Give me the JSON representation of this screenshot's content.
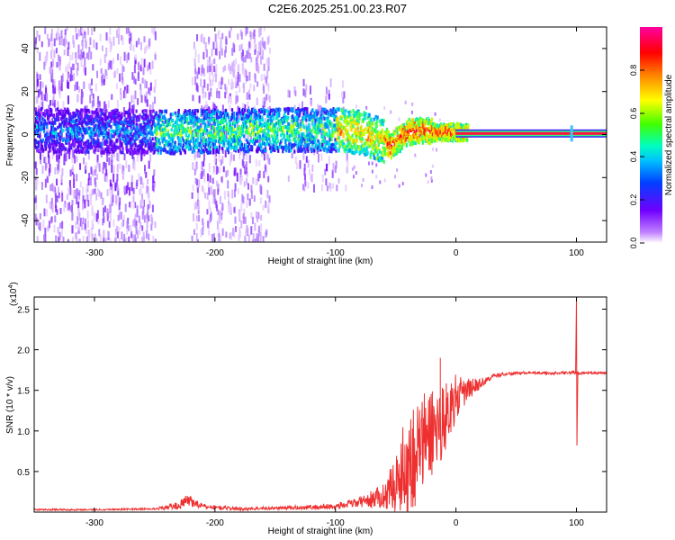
{
  "title": "C2E6.2025.251.00.23.R07",
  "colors": {
    "specgram_base": "#8000ff",
    "snr_line": "#ee3030",
    "frame": "#000000"
  },
  "chart_data": [
    {
      "type": "heatmap",
      "xlabel": "Height of straight line (km)",
      "ylabel": "Frequency (Hz)",
      "xlim": [
        -350,
        125
      ],
      "ylim": [
        -50,
        50
      ],
      "xticks": [
        -300,
        -200,
        -100,
        0,
        100
      ],
      "yticks": [
        -40,
        -20,
        0,
        20,
        40
      ],
      "grid": false,
      "colorbar": {
        "label": "Normalized spectral amplitude",
        "range": [
          0.0,
          1.0
        ],
        "ticks": [
          0.0,
          0.2,
          0.4,
          0.6,
          0.8
        ],
        "tick_labels": [
          "0.0",
          "0.2",
          "0.4",
          "0.6",
          "0.8"
        ],
        "colormap": "rainbow (white → purple → blue → cyan → green → yellow → red → magenta)"
      },
      "features": {
        "scatter_noise_x_ranges": [
          [
            -350,
            -250
          ],
          [
            -220,
            -155
          ],
          [
            -140,
            -90
          ]
        ],
        "gap_x_range": [
          -250,
          -220
        ],
        "central_band": {
          "x": [
            -350,
            -250,
            -150,
            -100,
            -80,
            -60,
            -55,
            -40,
            -30,
            -20,
            -10,
            0,
            10,
            100,
            125
          ],
          "center_hz": [
            2,
            1,
            2,
            2,
            1,
            -3,
            -5,
            1,
            2,
            1,
            1,
            1,
            0.5,
            0.5,
            0.5
          ]
        },
        "carrier_line": {
          "x_start": 0,
          "x_end": 125,
          "freq_hz": 0.5
        },
        "spike_x": 96
      }
    },
    {
      "type": "line",
      "xlabel": "Height of straight line (km)",
      "ylabel": "SNR (10 * v/v)",
      "y_multiplier": "(x10",
      "y_multiplier_exp": "4",
      "y_multiplier_close": ")",
      "xlim": [
        -350,
        125
      ],
      "ylim": [
        0,
        2.65
      ],
      "xticks": [
        -300,
        -200,
        -100,
        0,
        100
      ],
      "yticks": [
        0.5,
        1.0,
        1.5,
        2.0,
        2.5
      ],
      "ytick_labels": [
        "0.5",
        "1.0",
        "1.5",
        "2.0",
        "2.5"
      ],
      "grid": false,
      "series": [
        {
          "color": "#ee3030",
          "x": [
            -350,
            -300,
            -250,
            -230,
            -222,
            -210,
            -180,
            -150,
            -120,
            -100,
            -80,
            -60,
            -50,
            -45,
            -40,
            -35,
            -30,
            -25,
            -20,
            -15,
            -10,
            -5,
            0,
            5,
            10,
            15,
            20,
            25,
            30,
            40,
            60,
            80,
            95,
            100,
            105,
            125
          ],
          "y": [
            0.03,
            0.03,
            0.04,
            0.08,
            0.15,
            0.07,
            0.04,
            0.05,
            0.06,
            0.07,
            0.12,
            0.2,
            0.35,
            0.5,
            0.6,
            0.7,
            0.8,
            0.9,
            1.0,
            1.05,
            1.15,
            1.3,
            1.4,
            1.45,
            1.5,
            1.55,
            1.58,
            1.62,
            1.67,
            1.7,
            1.72,
            1.71,
            1.72,
            1.72,
            1.71,
            1.72
          ],
          "amplitude_noise": [
            0.01,
            0.01,
            0.01,
            0.05,
            0.08,
            0.03,
            0.02,
            0.02,
            0.03,
            0.04,
            0.06,
            0.15,
            0.35,
            0.5,
            0.7,
            0.7,
            0.65,
            0.6,
            0.6,
            0.5,
            0.45,
            0.35,
            0.3,
            0.2,
            0.15,
            0.1,
            0.06,
            0.04,
            0.03,
            0.02,
            0.015,
            0.015,
            0.02,
            0.02,
            0.015,
            0.015
          ],
          "annotations": [
            {
              "x": 100,
              "y_high": 2.65,
              "y_low": 0.82,
              "kind": "spike"
            },
            {
              "x": -13,
              "y_high": 1.9,
              "kind": "peak"
            }
          ]
        }
      ]
    }
  ]
}
